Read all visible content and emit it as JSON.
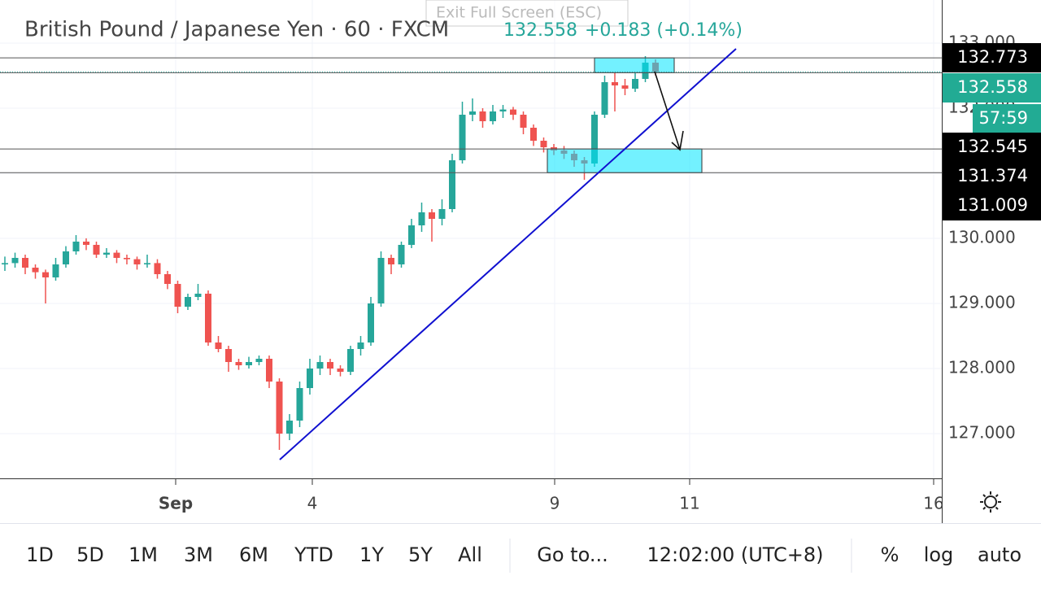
{
  "header": {
    "symbol": "British Pound / Japanese Yen · 60 · FXCM",
    "last": "132.558",
    "change": "+0.183 (+0.14%)",
    "exit": "Exit Full Screen (ESC)"
  },
  "chart_data": {
    "type": "candlestick",
    "ylim": [
      126.3125,
      133.6625
    ],
    "yticks": [
      {
        "value": 127,
        "label": "127.000"
      },
      {
        "value": 128,
        "label": "128.000"
      },
      {
        "value": 129,
        "label": "129.000"
      },
      {
        "value": 130,
        "label": "130.000"
      },
      {
        "value": 131,
        "label": "131.000"
      },
      {
        "value": 132,
        "label": "132.000"
      },
      {
        "value": 133,
        "label": "133.000"
      }
    ],
    "xlabels": [
      "Sep",
      "4",
      "9",
      "11",
      "16"
    ],
    "up_color": "#26a69a",
    "down_color": "#ef5350",
    "ohlc": [
      [
        129.6,
        129.72,
        129.5,
        129.62
      ],
      [
        129.62,
        129.78,
        129.55,
        129.7
      ],
      [
        129.7,
        129.75,
        129.45,
        129.55
      ],
      [
        129.55,
        129.6,
        129.38,
        129.48
      ],
      [
        129.48,
        129.52,
        129.0,
        129.4
      ],
      [
        129.4,
        129.7,
        129.35,
        129.6
      ],
      [
        129.6,
        129.88,
        129.55,
        129.8
      ],
      [
        129.8,
        130.05,
        129.75,
        129.95
      ],
      [
        129.95,
        130.0,
        129.82,
        129.9
      ],
      [
        129.9,
        129.95,
        129.7,
        129.75
      ],
      [
        129.75,
        129.85,
        129.7,
        129.78
      ],
      [
        129.78,
        129.82,
        129.62,
        129.7
      ],
      [
        129.7,
        129.75,
        129.6,
        129.68
      ],
      [
        129.68,
        129.72,
        129.52,
        129.6
      ],
      [
        129.6,
        129.75,
        129.55,
        129.62
      ],
      [
        129.62,
        129.68,
        129.38,
        129.45
      ],
      [
        129.45,
        129.5,
        129.22,
        129.3
      ],
      [
        129.3,
        129.35,
        128.85,
        128.95
      ],
      [
        128.95,
        129.15,
        128.9,
        129.1
      ],
      [
        129.1,
        129.3,
        129.05,
        129.15
      ],
      [
        129.15,
        129.2,
        128.35,
        128.4
      ],
      [
        128.4,
        128.5,
        128.25,
        128.3
      ],
      [
        128.3,
        128.35,
        127.95,
        128.1
      ],
      [
        128.1,
        128.15,
        127.98,
        128.05
      ],
      [
        128.05,
        128.18,
        128.0,
        128.1
      ],
      [
        128.1,
        128.2,
        128.05,
        128.15
      ],
      [
        128.15,
        128.2,
        127.7,
        127.8
      ],
      [
        127.8,
        127.85,
        126.75,
        127.0
      ],
      [
        127.0,
        127.3,
        126.9,
        127.2
      ],
      [
        127.2,
        127.8,
        127.1,
        127.7
      ],
      [
        127.7,
        128.15,
        127.6,
        128.0
      ],
      [
        128.0,
        128.2,
        127.9,
        128.1
      ],
      [
        128.1,
        128.15,
        127.9,
        128.0
      ],
      [
        128.0,
        128.05,
        127.88,
        127.95
      ],
      [
        127.95,
        128.35,
        127.9,
        128.3
      ],
      [
        128.3,
        128.5,
        128.2,
        128.4
      ],
      [
        128.4,
        129.1,
        128.35,
        129.0
      ],
      [
        129.0,
        129.8,
        128.95,
        129.7
      ],
      [
        129.7,
        129.75,
        129.45,
        129.6
      ],
      [
        129.6,
        129.95,
        129.55,
        129.9
      ],
      [
        129.9,
        130.3,
        129.85,
        130.2
      ],
      [
        130.2,
        130.55,
        130.1,
        130.4
      ],
      [
        130.4,
        130.45,
        129.95,
        130.3
      ],
      [
        130.3,
        130.6,
        130.2,
        130.45
      ],
      [
        130.45,
        131.3,
        130.4,
        131.2
      ],
      [
        131.2,
        132.1,
        131.15,
        131.9
      ],
      [
        131.9,
        132.15,
        131.8,
        131.95
      ],
      [
        131.95,
        132.0,
        131.7,
        131.8
      ],
      [
        131.8,
        132.05,
        131.75,
        131.95
      ],
      [
        131.95,
        132.05,
        131.85,
        131.98
      ],
      [
        131.98,
        132.02,
        131.82,
        131.9
      ],
      [
        131.9,
        131.95,
        131.6,
        131.7
      ],
      [
        131.7,
        131.75,
        131.42,
        131.5
      ],
      [
        131.5,
        131.55,
        131.32,
        131.4
      ],
      [
        131.4,
        131.45,
        131.28,
        131.35
      ],
      [
        131.35,
        131.42,
        131.22,
        131.3
      ],
      [
        131.3,
        131.35,
        131.1,
        131.2
      ],
      [
        131.2,
        131.25,
        130.9,
        131.15
      ],
      [
        131.15,
        131.95,
        131.1,
        131.9
      ],
      [
        131.9,
        132.5,
        131.85,
        132.4
      ],
      [
        132.4,
        132.55,
        131.95,
        132.35
      ],
      [
        132.35,
        132.45,
        132.2,
        132.3
      ],
      [
        132.3,
        132.55,
        132.25,
        132.45
      ],
      [
        132.45,
        132.8,
        132.4,
        132.7
      ],
      [
        132.7,
        132.75,
        132.5,
        132.56
      ]
    ],
    "levels": [
      132.773,
      132.545,
      131.374,
      131.009
    ],
    "price_line": 132.558,
    "trendline": [
      126.6,
      132.9125
    ],
    "tags": [
      {
        "value": 132.773,
        "label": "132.773"
      },
      {
        "value": 132.558,
        "label": "132.558"
      },
      {
        "label": "57:59"
      },
      {
        "value": 132.545,
        "label": "132.545"
      },
      {
        "value": 131.374,
        "label": "131.374"
      },
      {
        "value": 131.009,
        "label": "131.009"
      }
    ]
  },
  "toolbar": {
    "ranges": [
      "1D",
      "5D",
      "1M",
      "3M",
      "6M",
      "YTD",
      "1Y",
      "5Y",
      "All"
    ],
    "goto": "Go to...",
    "time": "12:02:00 (UTC+8)",
    "options": [
      "%",
      "log",
      "auto"
    ]
  }
}
